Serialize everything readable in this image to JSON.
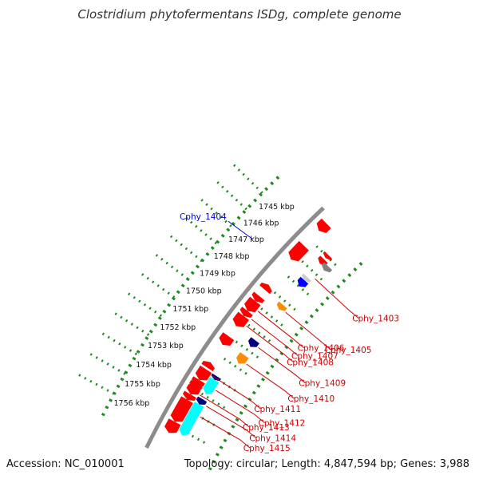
{
  "title": "Clostridium phytofermentans ISDg, complete genome",
  "footer": {
    "accession": "Accession: NC_010001",
    "summary": "Topology: circular; Length: 4,847,594 bp; Genes: 3,988"
  },
  "colors": {
    "backbone": "#8c8c8c",
    "tick_dots": "#1f8a1f",
    "forward_gene": "#ff0000",
    "forward_gene_alt": "#ff2020",
    "cyan_feature": "#00ffff",
    "navy_feature": "#000080",
    "blue_feature": "#0000ff",
    "orange_feature": "#ff8c00",
    "gray_feature": "#808080",
    "lightgray_feature": "#cccccc",
    "label_red": "#cc0000",
    "label_blue": "#0000cc"
  },
  "axis": {
    "ticks": [
      {
        "kb": 1745,
        "label": "1745 kbp"
      },
      {
        "kb": 1746,
        "label": "1746 kbp"
      },
      {
        "kb": 1747,
        "label": "1747 kbp"
      },
      {
        "kb": 1748,
        "label": "1748 kbp"
      },
      {
        "kb": 1749,
        "label": "1749 kbp"
      },
      {
        "kb": 1750,
        "label": "1750 kbp"
      },
      {
        "kb": 1751,
        "label": "1751 kbp"
      },
      {
        "kb": 1752,
        "label": "1752 kbp"
      },
      {
        "kb": 1753,
        "label": "1753 kbp"
      },
      {
        "kb": 1754,
        "label": "1754 kbp"
      },
      {
        "kb": 1755,
        "label": "1755 kbp"
      },
      {
        "kb": 1756,
        "label": "1756 kbp"
      }
    ]
  },
  "features": [
    {
      "start": 1743.9,
      "end": 1744.4,
      "ring": "fwd",
      "color": "forward_gene",
      "strand": 1
    },
    {
      "start": 1744.9,
      "end": 1745.1,
      "ring": "in1",
      "color": "forward_gene",
      "strand": 1
    },
    {
      "start": 1745.2,
      "end": 1745.5,
      "ring": "in1",
      "color": "forward_gene",
      "strand": 1
    },
    {
      "start": 1745.3,
      "end": 1745.6,
      "ring": "in2",
      "color": "gray_feature",
      "strand": 1
    },
    {
      "start": 1745.4,
      "end": 1746.3,
      "ring": "fwd",
      "color": "forward_gene",
      "strand": 1
    },
    {
      "start": 1746.4,
      "end": 1746.6,
      "ring": "in1",
      "color": "lightgray_feature",
      "strand": 1
    },
    {
      "start": 1746.6,
      "end": 1747.0,
      "ring": "in1",
      "color": "blue_feature",
      "strand": 1
    },
    {
      "start": 1747.9,
      "end": 1748.2,
      "ring": "fwd",
      "color": "forward_gene",
      "strand": -1
    },
    {
      "start": 1748.2,
      "end": 1748.5,
      "ring": "in1",
      "color": "orange_feature",
      "strand": 1
    },
    {
      "start": 1748.6,
      "end": 1748.9,
      "ring": "fwd",
      "color": "forward_gene",
      "strand": 1
    },
    {
      "start": 1748.9,
      "end": 1749.5,
      "ring": "fwd",
      "color": "forward_gene",
      "strand": 1
    },
    {
      "start": 1749.5,
      "end": 1749.8,
      "ring": "fwd",
      "color": "forward_gene",
      "strand": 1
    },
    {
      "start": 1749.8,
      "end": 1750.4,
      "ring": "fwd",
      "color": "forward_gene",
      "strand": 1
    },
    {
      "start": 1750.4,
      "end": 1750.8,
      "ring": "in1",
      "color": "navy_feature",
      "strand": 1
    },
    {
      "start": 1751.0,
      "end": 1751.5,
      "ring": "fwd",
      "color": "forward_gene",
      "strand": 1
    },
    {
      "start": 1751.3,
      "end": 1751.8,
      "ring": "in1",
      "color": "orange_feature",
      "strand": 1
    },
    {
      "start": 1752.5,
      "end": 1752.8,
      "ring": "fwd",
      "color": "forward_gene",
      "strand": -1
    },
    {
      "start": 1752.9,
      "end": 1753.5,
      "ring": "fwd",
      "color": "forward_gene",
      "strand": 1
    },
    {
      "start": 1752.9,
      "end": 1753.1,
      "ring": "in0",
      "color": "navy_feature",
      "strand": 1
    },
    {
      "start": 1753.1,
      "end": 1753.9,
      "ring": "in0",
      "color": "cyan_feature",
      "strand": 1
    },
    {
      "start": 1753.5,
      "end": 1753.8,
      "ring": "fwd",
      "color": "forward_gene",
      "strand": 1
    },
    {
      "start": 1753.7,
      "end": 1754.0,
      "ring": "fwd",
      "color": "forward_gene",
      "strand": 1
    },
    {
      "start": 1753.9,
      "end": 1754.3,
      "ring": "fwd",
      "color": "forward_gene",
      "strand": 1
    },
    {
      "start": 1754.3,
      "end": 1754.6,
      "ring": "fwd",
      "color": "forward_gene",
      "strand": 1
    },
    {
      "start": 1754.2,
      "end": 1754.5,
      "ring": "in0",
      "color": "navy_feature",
      "strand": 1
    },
    {
      "start": 1754.5,
      "end": 1756.2,
      "ring": "in0",
      "color": "cyan_feature",
      "strand": 1
    },
    {
      "start": 1754.6,
      "end": 1755.8,
      "ring": "fwd",
      "color": "forward_gene",
      "strand": 1
    },
    {
      "start": 1755.8,
      "end": 1756.4,
      "ring": "fwd",
      "color": "forward_gene",
      "strand": 1
    }
  ],
  "labels": [
    {
      "text": "Cphy_1403",
      "kb": 1746.2,
      "ring": "in1",
      "color": "label_red"
    },
    {
      "text": "Cphy_1404",
      "kb": 1746.8,
      "ring": "in1",
      "color": "label_blue"
    },
    {
      "text": "Cphy_1405",
      "kb": 1748.4,
      "ring": "in1",
      "color": "label_red"
    },
    {
      "text": "Cphy_1406",
      "kb": 1749.2,
      "ring": "fwd",
      "color": "label_red"
    },
    {
      "text": "Cphy_1407",
      "kb": 1749.7,
      "ring": "fwd",
      "color": "label_red"
    },
    {
      "text": "Cphy_1408",
      "kb": 1750.1,
      "ring": "fwd",
      "color": "label_red"
    },
    {
      "text": "Cphy_1409",
      "kb": 1750.6,
      "ring": "in1",
      "color": "label_red"
    },
    {
      "text": "Cphy_1410",
      "kb": 1751.6,
      "ring": "in1",
      "color": "label_red"
    },
    {
      "text": "Cphy_1411",
      "kb": 1753.0,
      "ring": "fwd",
      "color": "label_red"
    },
    {
      "text": "Cphy_1412",
      "kb": 1753.5,
      "ring": "in0",
      "color": "label_red"
    },
    {
      "text": "Cphy_1413",
      "kb": 1754.1,
      "ring": "fwd",
      "color": "label_red"
    },
    {
      "text": "Cphy_1414",
      "kb": 1754.4,
      "ring": "in0",
      "color": "label_red"
    },
    {
      "text": "Cphy_1415",
      "kb": 1755.0,
      "ring": "in0",
      "color": "label_red"
    }
  ]
}
